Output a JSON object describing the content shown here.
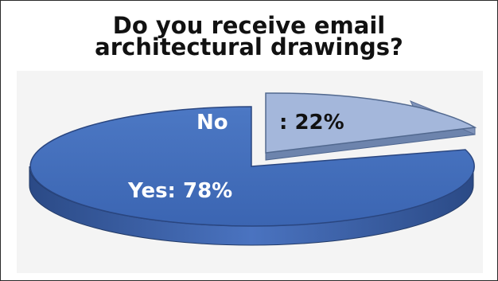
{
  "chart_data": {
    "type": "pie",
    "title_lines": [
      "Do you receive email",
      "architectural drawings?"
    ],
    "slices": [
      {
        "label_line1": "No",
        "label_line2": ": 22%",
        "value": 22,
        "color": "#9fb3d9",
        "exploded": true
      },
      {
        "label": "Yes: 78%",
        "value": 78,
        "color": "#3f6dbb",
        "exploded": false
      }
    ]
  },
  "colors": {
    "yes_top": "#4470bd",
    "yes_side": "#2f5191",
    "no_top": "#a9bbdc",
    "no_side": "#7d90b4",
    "label_text": "#ffffff",
    "no_value_text": "#111111"
  }
}
